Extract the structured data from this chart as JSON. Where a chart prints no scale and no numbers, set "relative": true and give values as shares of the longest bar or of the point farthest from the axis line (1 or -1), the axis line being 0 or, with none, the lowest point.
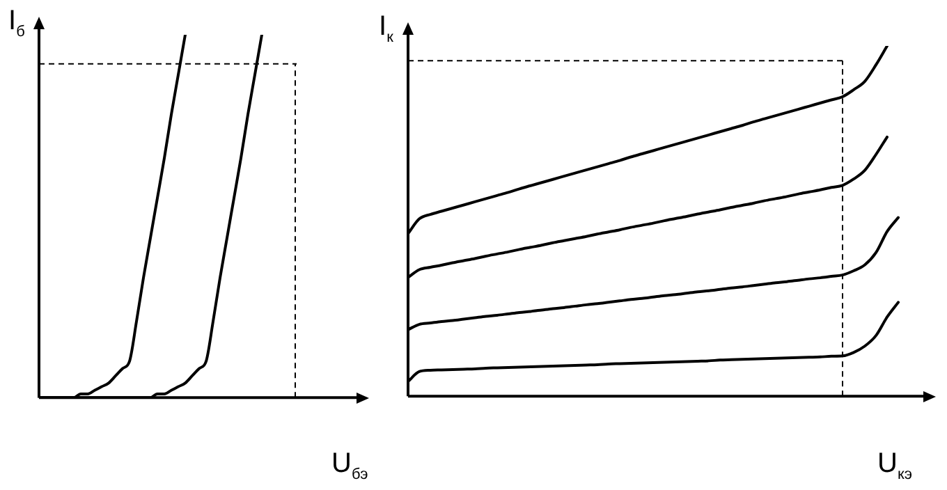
{
  "chart_data": [
    {
      "type": "line",
      "xlabel": "U$_{бэ}$",
      "ylabel": "I$_{б}$",
      "relative": true,
      "legend": false,
      "grid": false,
      "marker": "none",
      "line_style": "solid",
      "categories": [
        null,
        null,
        null,
        null,
        null,
        null,
        null,
        null,
        null,
        null,
        null,
        null,
        null,
        null,
        null,
        null,
        null,
        null,
        null,
        null,
        null,
        null,
        null,
        null,
        null,
        null,
        null,
        null,
        null,
        null,
        null,
        null,
        null,
        null,
        null,
        null,
        null,
        null,
        null,
        null,
        null,
        null,
        null,
        null,
        null,
        null,
        null,
        null
      ],
      "series": [
        {
          "color": "#000000",
          "values": [
            0,
            0,
            0,
            0,
            0,
            0,
            0.01,
            0.01,
            0.02,
            0.03,
            0.04,
            0.06,
            0.08,
            0.1,
            0.21,
            0.33,
            0.44,
            0.55,
            0.66,
            0.78,
            0.89,
            1.0,
            null,
            null,
            null,
            null,
            null,
            null,
            null,
            null,
            null,
            null,
            null,
            null,
            null,
            null,
            null,
            null,
            null,
            null,
            null,
            null,
            null,
            null,
            null,
            null,
            null,
            null
          ]
        },
        {
          "color": "#000000",
          "values": [
            0,
            0,
            0,
            0,
            0,
            0,
            0,
            0,
            0,
            0,
            0,
            0,
            0,
            0,
            0,
            0,
            0,
            0.01,
            0.01,
            0.02,
            0.03,
            0.04,
            0.06,
            0.08,
            0.1,
            0.21,
            0.33,
            0.44,
            0.55,
            0.66,
            0.78,
            0.89,
            1.0,
            null,
            null,
            null,
            null,
            null,
            null,
            null,
            null,
            null,
            null,
            null,
            null,
            null,
            null,
            null
          ]
        }
      ],
      "ref_lines": [
        {
          "axis": "y",
          "value": 0.92,
          "line_style": "dashed"
        }
      ]
    },
    {
      "type": "line",
      "xlabel": "U$_{кэ}$",
      "ylabel": "I$_{к}$",
      "relative": true,
      "legend": false,
      "grid": false,
      "marker": "none",
      "line_style": "solid",
      "categories": [
        null,
        null,
        null,
        null,
        null,
        null,
        null,
        null,
        null,
        null,
        null,
        null,
        null,
        null,
        null,
        null,
        null,
        null,
        null,
        null,
        null,
        null,
        null,
        null,
        null,
        null,
        null,
        null,
        null,
        null,
        null,
        null,
        null,
        null,
        null,
        null,
        null,
        null,
        null,
        null,
        null,
        null,
        null,
        null,
        null,
        null
      ],
      "series": [
        {
          "color": "#000000",
          "values": [
            0.464,
            0.506,
            0.519,
            0.528,
            0.537,
            0.546,
            0.555,
            0.564,
            0.573,
            0.582,
            0.592,
            0.601,
            0.61,
            0.619,
            0.628,
            0.637,
            0.646,
            0.655,
            0.664,
            0.673,
            0.683,
            0.692,
            0.701,
            0.71,
            0.719,
            0.728,
            0.737,
            0.746,
            0.755,
            0.764,
            0.773,
            0.783,
            0.792,
            0.801,
            0.81,
            0.819,
            0.828,
            0.837,
            0.846,
            0.855,
            0.875,
            0.899,
            0.946,
            1.0,
            null,
            null
          ]
        },
        {
          "color": "#000000",
          "values": [
            0.339,
            0.361,
            0.368,
            0.374,
            0.381,
            0.387,
            0.393,
            0.4,
            0.406,
            0.412,
            0.419,
            0.425,
            0.431,
            0.438,
            0.444,
            0.45,
            0.456,
            0.463,
            0.469,
            0.475,
            0.482,
            0.488,
            0.494,
            0.501,
            0.507,
            0.513,
            0.52,
            0.526,
            0.532,
            0.539,
            0.545,
            0.551,
            0.558,
            0.564,
            0.57,
            0.577,
            0.583,
            0.589,
            0.596,
            0.602,
            0.62,
            0.645,
            0.69,
            0.74,
            null,
            null
          ]
        },
        {
          "color": "#000000",
          "values": [
            0.19,
            0.205,
            0.209,
            0.213,
            0.216,
            0.22,
            0.224,
            0.228,
            0.231,
            0.235,
            0.239,
            0.242,
            0.246,
            0.25,
            0.253,
            0.257,
            0.261,
            0.264,
            0.268,
            0.272,
            0.276,
            0.279,
            0.283,
            0.287,
            0.29,
            0.294,
            0.298,
            0.301,
            0.305,
            0.309,
            0.312,
            0.316,
            0.32,
            0.324,
            0.327,
            0.331,
            0.335,
            0.338,
            0.342,
            0.346,
            0.358,
            0.375,
            0.41,
            0.47,
            0.51,
            null
          ]
        },
        {
          "color": "#000000",
          "values": [
            0.042,
            0.07,
            0.074,
            0.075,
            0.076,
            0.077,
            0.078,
            0.08,
            0.081,
            0.082,
            0.083,
            0.084,
            0.085,
            0.086,
            0.087,
            0.088,
            0.089,
            0.09,
            0.092,
            0.093,
            0.094,
            0.095,
            0.096,
            0.097,
            0.098,
            0.099,
            0.1,
            0.101,
            0.103,
            0.104,
            0.105,
            0.106,
            0.107,
            0.108,
            0.109,
            0.11,
            0.111,
            0.112,
            0.114,
            0.115,
            0.125,
            0.143,
            0.173,
            0.226,
            0.268,
            null
          ]
        }
      ],
      "ref_lines": [
        {
          "axis": "y",
          "value": 0.958,
          "line_style": "dashed"
        }
      ]
    }
  ]
}
